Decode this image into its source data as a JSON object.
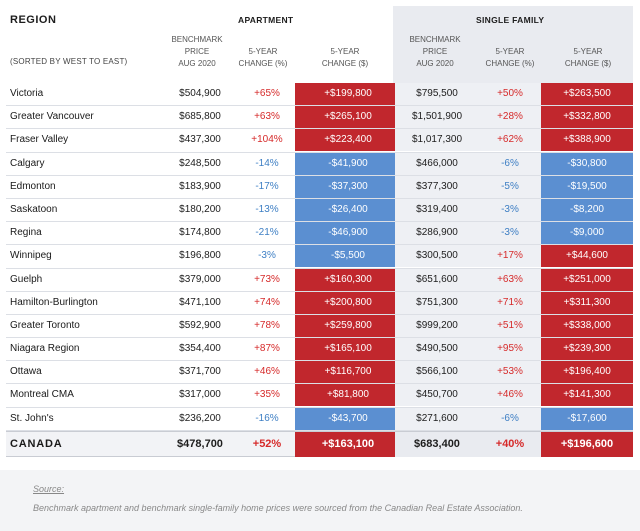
{
  "header": {
    "region": "REGION",
    "sorted": "(SORTED BY WEST TO EAST)",
    "apartment": "APARTMENT",
    "single_family": "SINGLE FAMILY",
    "col_price": [
      "BENCHMARK",
      "PRICE",
      "AUG 2020"
    ],
    "col_pct": [
      "5-YEAR",
      "CHANGE (%)"
    ],
    "col_dollar": [
      "5-YEAR",
      "CHANGE ($)"
    ]
  },
  "colors": {
    "positive": "#c1272d",
    "negative": "#5b8fd1",
    "pos_text": "#d62a2a",
    "neg_text": "#3e7fc4"
  },
  "rows": [
    {
      "name": "Victoria",
      "ap_price": "$504,900",
      "ap_pct": "+65%",
      "ap_chg": "+$199,800",
      "sf_price": "$795,500",
      "sf_pct": "+50%",
      "sf_chg": "+$263,500"
    },
    {
      "name": "Greater Vancouver",
      "ap_price": "$685,800",
      "ap_pct": "+63%",
      "ap_chg": "+$265,100",
      "sf_price": "$1,501,900",
      "sf_pct": "+28%",
      "sf_chg": "+$332,800"
    },
    {
      "name": "Fraser Valley",
      "ap_price": "$437,300",
      "ap_pct": "+104%",
      "ap_chg": "+$223,400",
      "sf_price": "$1,017,300",
      "sf_pct": "+62%",
      "sf_chg": "+$388,900"
    },
    {
      "name": "Calgary",
      "ap_price": "$248,500",
      "ap_pct": "-14%",
      "ap_chg": "-$41,900",
      "sf_price": "$466,000",
      "sf_pct": "-6%",
      "sf_chg": "-$30,800"
    },
    {
      "name": "Edmonton",
      "ap_price": "$183,900",
      "ap_pct": "-17%",
      "ap_chg": "-$37,300",
      "sf_price": "$377,300",
      "sf_pct": "-5%",
      "sf_chg": "-$19,500"
    },
    {
      "name": "Saskatoon",
      "ap_price": "$180,200",
      "ap_pct": "-13%",
      "ap_chg": "-$26,400",
      "sf_price": "$319,400",
      "sf_pct": "-3%",
      "sf_chg": "-$8,200"
    },
    {
      "name": "Regina",
      "ap_price": "$174,800",
      "ap_pct": "-21%",
      "ap_chg": "-$46,900",
      "sf_price": "$286,900",
      "sf_pct": "-3%",
      "sf_chg": "-$9,000"
    },
    {
      "name": "Winnipeg",
      "ap_price": "$196,800",
      "ap_pct": "-3%",
      "ap_chg": "-$5,500",
      "sf_price": "$300,500",
      "sf_pct": "+17%",
      "sf_chg": "+$44,600"
    },
    {
      "name": "Guelph",
      "ap_price": "$379,000",
      "ap_pct": "+73%",
      "ap_chg": "+$160,300",
      "sf_price": "$651,600",
      "sf_pct": "+63%",
      "sf_chg": "+$251,000"
    },
    {
      "name": "Hamilton-Burlington",
      "ap_price": "$471,100",
      "ap_pct": "+74%",
      "ap_chg": "+$200,800",
      "sf_price": "$751,300",
      "sf_pct": "+71%",
      "sf_chg": "+$311,300"
    },
    {
      "name": "Greater Toronto",
      "ap_price": "$592,900",
      "ap_pct": "+78%",
      "ap_chg": "+$259,800",
      "sf_price": "$999,200",
      "sf_pct": "+51%",
      "sf_chg": "+$338,000"
    },
    {
      "name": "Niagara Region",
      "ap_price": "$354,400",
      "ap_pct": "+87%",
      "ap_chg": "+$165,100",
      "sf_price": "$490,500",
      "sf_pct": "+95%",
      "sf_chg": "+$239,300"
    },
    {
      "name": "Ottawa",
      "ap_price": "$371,700",
      "ap_pct": "+46%",
      "ap_chg": "+$116,700",
      "sf_price": "$566,100",
      "sf_pct": "+53%",
      "sf_chg": "+$196,400"
    },
    {
      "name": "Montreal CMA",
      "ap_price": "$317,000",
      "ap_pct": "+35%",
      "ap_chg": "+$81,800",
      "sf_price": "$450,700",
      "sf_pct": "+46%",
      "sf_chg": "+$141,300"
    },
    {
      "name": "St. John's",
      "ap_price": "$236,200",
      "ap_pct": "-16%",
      "ap_chg": "-$43,700",
      "sf_price": "$271,600",
      "sf_pct": "-6%",
      "sf_chg": "-$17,600"
    }
  ],
  "total": {
    "name": "CANADA",
    "ap_price": "$478,700",
    "ap_pct": "+52%",
    "ap_chg": "+$163,100",
    "sf_price": "$683,400",
    "sf_pct": "+40%",
    "sf_chg": "+$196,600"
  },
  "source": {
    "label": "Source:",
    "text": "Benchmark apartment and benchmark single-family home prices were sourced from the Canadian Real Estate Association."
  }
}
